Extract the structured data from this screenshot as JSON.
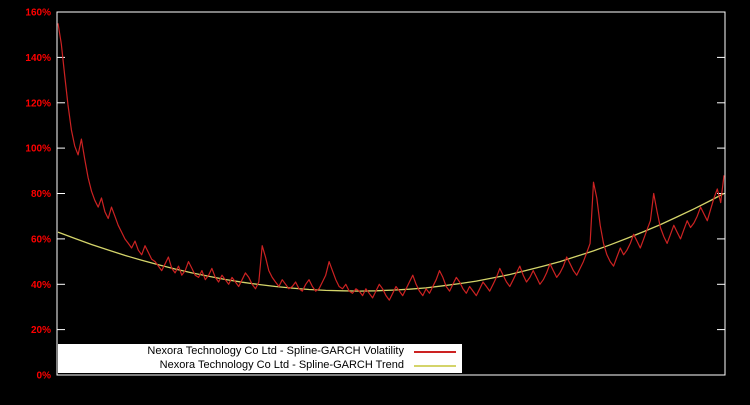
{
  "chart_data": {
    "type": "line",
    "title": "",
    "xlabel": "",
    "ylabel": "",
    "grid": false,
    "background": "#000000",
    "border_color": "#ffffff",
    "legend_position": "bottom-left",
    "axis": {
      "ylim": [
        0,
        160
      ],
      "ytick_step": 20,
      "ytick_suffix": "%",
      "ytick_labels": [
        "0%",
        "20%",
        "40%",
        "60%",
        "80%",
        "100%",
        "120%",
        "140%",
        "160%"
      ],
      "label_color": "#ff0000"
    },
    "series": [
      {
        "name": "Nexora Technology Co Ltd - Spline-GARCH Volatility",
        "color": "#cc2222",
        "values": [
          155,
          146,
          132,
          119,
          108,
          101,
          97,
          104,
          95,
          87,
          81,
          77,
          74,
          78,
          72,
          69,
          74,
          70,
          66,
          63,
          60,
          58,
          56,
          59,
          55,
          53,
          57,
          54,
          51,
          50,
          48,
          46,
          49,
          52,
          47,
          45,
          48,
          44,
          46,
          50,
          47,
          44,
          43,
          46,
          42,
          44,
          47,
          43,
          41,
          44,
          42,
          40,
          43,
          41,
          39,
          42,
          45,
          43,
          40,
          38,
          41,
          57,
          52,
          46,
          43,
          41,
          39,
          42,
          40,
          38,
          39,
          41,
          38,
          37,
          40,
          42,
          39,
          37,
          38,
          41,
          44,
          50,
          46,
          42,
          39,
          38,
          40,
          37,
          36,
          38,
          37,
          35,
          38,
          36,
          34,
          37,
          40,
          38,
          35,
          33,
          36,
          39,
          37,
          35,
          38,
          41,
          44,
          40,
          37,
          35,
          38,
          36,
          39,
          42,
          46,
          43,
          39,
          37,
          40,
          43,
          41,
          38,
          36,
          39,
          37,
          35,
          38,
          41,
          39,
          37,
          40,
          43,
          47,
          44,
          41,
          39,
          42,
          45,
          48,
          44,
          41,
          43,
          46,
          43,
          40,
          42,
          45,
          49,
          46,
          43,
          45,
          48,
          52,
          49,
          46,
          44,
          47,
          50,
          54,
          58,
          85,
          78,
          66,
          58,
          53,
          50,
          48,
          52,
          56,
          53,
          55,
          58,
          62,
          59,
          56,
          60,
          64,
          68,
          80,
          72,
          65,
          61,
          58,
          62,
          66,
          63,
          60,
          64,
          68,
          65,
          67,
          70,
          74,
          71,
          68,
          73,
          78,
          82,
          76,
          88
        ]
      },
      {
        "name": "Nexora Technology Co Ltd - Spline-GARCH Trend",
        "color": "#d4d46a",
        "x": [
          0,
          5,
          10,
          15,
          20,
          25,
          30,
          35,
          40,
          45,
          50,
          55,
          60,
          65,
          70,
          75,
          80,
          85,
          90,
          95,
          100,
          105,
          110,
          115,
          120,
          125,
          130,
          135,
          140,
          145,
          150,
          155,
          160,
          165,
          170,
          175,
          180,
          185,
          190,
          195,
          199
        ],
        "values": [
          63.0,
          60.2,
          57.5,
          55.1,
          52.7,
          50.6,
          48.6,
          46.7,
          45.0,
          43.5,
          42.1,
          40.9,
          39.9,
          39.0,
          38.3,
          37.7,
          37.3,
          37.1,
          37.0,
          37.1,
          37.4,
          37.8,
          38.4,
          39.3,
          40.3,
          41.4,
          42.8,
          44.3,
          46.1,
          48.0,
          50.0,
          52.3,
          54.7,
          57.4,
          60.2,
          63.2,
          66.3,
          69.7,
          73.2,
          76.9,
          80.0
        ]
      }
    ]
  },
  "legend": {
    "entries": [
      {
        "label": "Nexora Technology Co Ltd - Spline-GARCH Volatility",
        "color": "#cc2222"
      },
      {
        "label": "Nexora Technology Co Ltd - Spline-GARCH Trend",
        "color": "#d4d46a"
      }
    ]
  }
}
